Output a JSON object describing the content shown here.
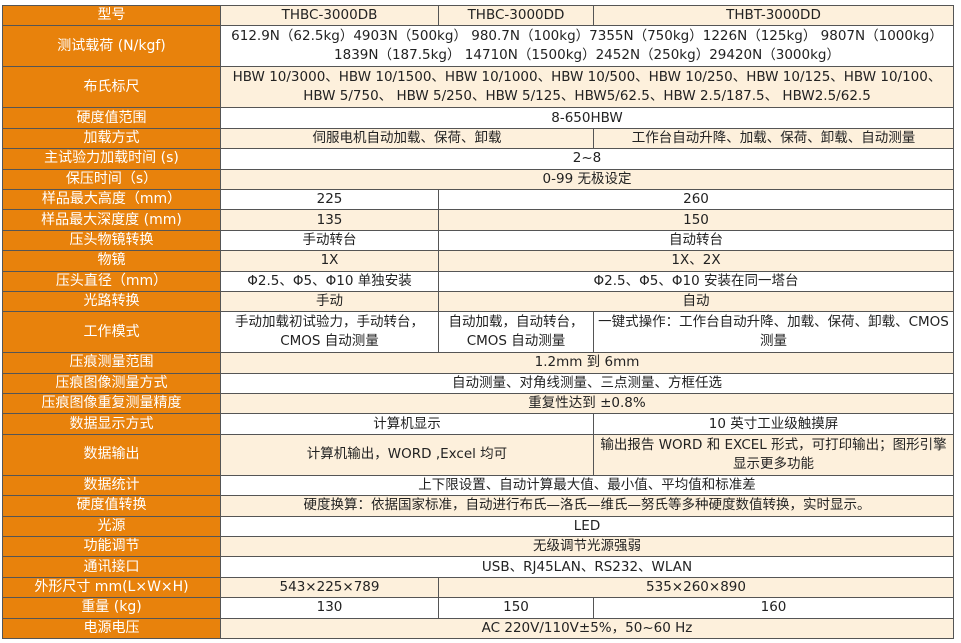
{
  "colors": {
    "label_bg": "#e8820c",
    "row_cream": "#fdf0dc",
    "row_white": "#ffffff"
  },
  "rows": [
    {
      "label": "型号",
      "cells": [
        {
          "text": "THBC-3000DB",
          "span": 1
        },
        {
          "text": "THBC-3000DD",
          "span": 1
        },
        {
          "text": "THBT-3000DD",
          "span": 1
        }
      ]
    },
    {
      "label": "测试载荷 (N/kgf)",
      "double": true,
      "cells": [
        {
          "text": "612.9N（62.5kg）4903N（500kg） 980.7N（100kg）7355N（750kg）1226N（125kg） 9807N（1000kg）1839N（187.5kg） 14710N（1500kg）2452N（250kg）29420N（3000kg）",
          "span": 3
        }
      ]
    },
    {
      "label": "布氏标尺",
      "double": true,
      "cells": [
        {
          "text": "HBW 10/3000、HBW 10/1500、HBW 10/1000、HBW 10/500、HBW 10/250、HBW 10/125、HBW 10/100、HBW 5/750、 HBW 5/250、HBW 5/125、HBW5/62.5、HBW 2.5/187.5、 HBW2.5/62.5",
          "span": 3
        }
      ]
    },
    {
      "label": "硬度值范围",
      "cells": [
        {
          "text": "8-650HBW",
          "span": 3
        }
      ]
    },
    {
      "label": "加载方式",
      "cells": [
        {
          "text": "伺服电机自动加载、保荷、卸载",
          "span": 2
        },
        {
          "text": "工作台自动升降、加载、保荷、卸载、自动测量",
          "span": 1
        }
      ]
    },
    {
      "label": "主试验力加载时间 (s)",
      "cells": [
        {
          "text": "2~8",
          "span": 3
        }
      ]
    },
    {
      "label": "保压时间（s）",
      "cells": [
        {
          "text": "0-99 无极设定",
          "span": 3
        }
      ]
    },
    {
      "label": "样品最大高度（mm）",
      "cells": [
        {
          "text": "225",
          "span": 1
        },
        {
          "text": "260",
          "span": 2
        }
      ]
    },
    {
      "label": "样品最大深度度 (mm)",
      "cells": [
        {
          "text": "135",
          "span": 1
        },
        {
          "text": "150",
          "span": 2
        }
      ]
    },
    {
      "label": "压头物镜转换",
      "cells": [
        {
          "text": "手动转台",
          "span": 1
        },
        {
          "text": "自动转台",
          "span": 2
        }
      ]
    },
    {
      "label": "物镜",
      "cells": [
        {
          "text": "1X",
          "span": 1
        },
        {
          "text": "1X、2X",
          "span": 2
        }
      ]
    },
    {
      "label": "压头直径（mm）",
      "cells": [
        {
          "text": "Φ2.5、Φ5、Φ10 单独安装",
          "span": 1
        },
        {
          "text": "Φ2.5、Φ5、Φ10 安装在同一塔台",
          "span": 2
        }
      ]
    },
    {
      "label": "光路转换",
      "cells": [
        {
          "text": "手动",
          "span": 1
        },
        {
          "text": "自动",
          "span": 2
        }
      ]
    },
    {
      "label": "工作模式",
      "double": true,
      "cells": [
        {
          "text": "手动加载初试验力，手动转台，CMOS 自动测量",
          "span": 1
        },
        {
          "text": "自动加载，自动转台，CMOS 自动测量",
          "span": 1
        },
        {
          "text": "一键式操作：工作台自动升降、加载、保荷、卸载、CMOS 测量",
          "span": 1
        }
      ]
    },
    {
      "label": "压痕测量范围",
      "cells": [
        {
          "text": "1.2mm 到 6mm",
          "span": 3
        }
      ]
    },
    {
      "label": "压痕图像测量方式",
      "cells": [
        {
          "text": "自动测量、对角线测量、三点测量、方框任选",
          "span": 3
        }
      ]
    },
    {
      "label": "压痕图像重复测量精度",
      "cells": [
        {
          "text": "重复性达到 ±0.8%",
          "span": 3
        }
      ]
    },
    {
      "label": "数据显示方式",
      "cells": [
        {
          "text": "计算机显示",
          "span": 2
        },
        {
          "text": "10 英寸工业级触摸屏",
          "span": 1
        }
      ]
    },
    {
      "label": "数据输出",
      "double": true,
      "cells": [
        {
          "text": "计算机输出，WORD ,Excel 均可",
          "span": 2
        },
        {
          "text": "输出报告 WORD 和 EXCEL 形式，可打印输出；图形引擎显示更多功能",
          "span": 1
        }
      ]
    },
    {
      "label": "数据统计",
      "cells": [
        {
          "text": "上下限设置、自动计算最大值、最小值、平均值和标准差",
          "span": 3
        }
      ]
    },
    {
      "label": "硬度值转换",
      "cells": [
        {
          "text": "硬度换算：依据国家标准，自动进行布氏—洛氏—维氏—努氏等多种硬度数值转换，实时显示。",
          "span": 3
        }
      ]
    },
    {
      "label": "光源",
      "cells": [
        {
          "text": "LED",
          "span": 3
        }
      ]
    },
    {
      "label": "功能调节",
      "cells": [
        {
          "text": "无级调节光源强弱",
          "span": 3
        }
      ]
    },
    {
      "label": "通讯接口",
      "cells": [
        {
          "text": "USB、RJ45LAN、RS232、WLAN",
          "span": 3
        }
      ]
    },
    {
      "label": "外形尺寸 mm(L×W×H)",
      "cells": [
        {
          "text": "543×225×789",
          "span": 1
        },
        {
          "text": "535×260×890",
          "span": 2
        }
      ]
    },
    {
      "label": "重量 (kg)",
      "cells": [
        {
          "text": "130",
          "span": 1
        },
        {
          "text": "150",
          "span": 1
        },
        {
          "text": "160",
          "span": 1
        }
      ]
    },
    {
      "label": "电源电压",
      "cells": [
        {
          "text": "AC 220V/110V±5%，50~60 Hz",
          "span": 3
        }
      ]
    }
  ]
}
